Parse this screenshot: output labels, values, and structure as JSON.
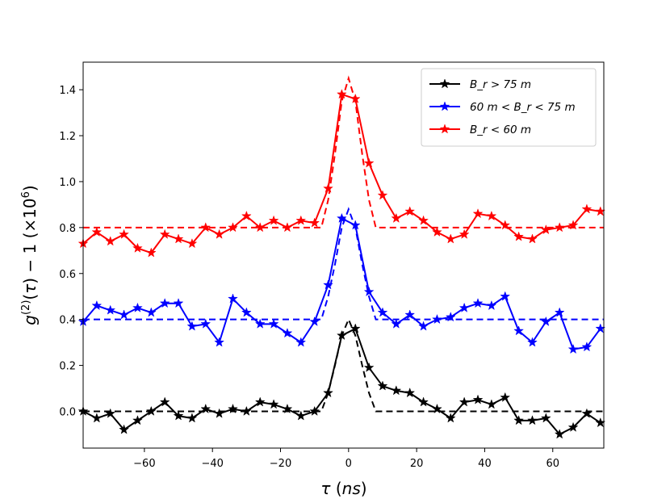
{
  "chart_data": {
    "type": "line",
    "xlabel": "τ (ns)",
    "ylabel": "g(2)(τ) − 1 (×106)",
    "xlim": [
      -78,
      75
    ],
    "ylim": [
      -0.16,
      1.52
    ],
    "xticks": [
      -60,
      -40,
      -20,
      0,
      20,
      40,
      60
    ],
    "yticks": [
      0.0,
      0.2,
      0.4,
      0.6,
      0.8,
      1.0,
      1.2,
      1.4
    ],
    "xtick_labels": [
      "−60",
      "−40",
      "−20",
      "0",
      "20",
      "40",
      "60"
    ],
    "ytick_labels": [
      "0.0",
      "0.2",
      "0.4",
      "0.6",
      "0.8",
      "1.0",
      "1.2",
      "1.4"
    ],
    "legend_position": "top-right",
    "grid": false,
    "x": [
      -78,
      -74,
      -70,
      -66,
      -62,
      -58,
      -54,
      -50,
      -46,
      -42,
      -38,
      -34,
      -30,
      -26,
      -22,
      -18,
      -14,
      -10,
      -6,
      -2,
      2,
      6,
      10,
      14,
      18,
      22,
      26,
      30,
      34,
      38,
      42,
      46,
      50,
      54,
      58,
      62,
      66,
      70,
      74
    ],
    "series": [
      {
        "name": "Br > 75 m",
        "legend_label": "B_r > 75 m",
        "color": "#000000",
        "marker": "star",
        "values": [
          0.0,
          -0.03,
          -0.01,
          -0.08,
          -0.04,
          0.0,
          0.04,
          -0.02,
          -0.03,
          0.01,
          -0.01,
          0.01,
          0.0,
          0.04,
          0.03,
          0.01,
          -0.02,
          0.0,
          0.08,
          0.33,
          0.36,
          0.19,
          0.11,
          0.09,
          0.08,
          0.04,
          0.01,
          -0.03,
          0.04,
          0.05,
          0.03,
          0.06,
          -0.04,
          -0.04,
          -0.03,
          -0.1,
          -0.07,
          -0.01,
          -0.05
        ],
        "fit": {
          "baseline": 0.0,
          "peak": 0.4,
          "x": [
            -78,
            -8,
            -6,
            -4,
            -2,
            0,
            2,
            4,
            6,
            8,
            75
          ],
          "y": [
            0.0,
            0.0,
            0.08,
            0.2,
            0.33,
            0.4,
            0.33,
            0.2,
            0.08,
            0.0,
            0.0
          ]
        }
      },
      {
        "name": "60 m < Br < 75 m",
        "legend_label": "60 m < B_r < 75 m",
        "color": "#0000ff",
        "marker": "star",
        "values": [
          0.39,
          0.46,
          0.44,
          0.42,
          0.45,
          0.43,
          0.47,
          0.47,
          0.37,
          0.38,
          0.3,
          0.49,
          0.43,
          0.38,
          0.38,
          0.34,
          0.3,
          0.39,
          0.55,
          0.84,
          0.81,
          0.52,
          0.43,
          0.38,
          0.42,
          0.37,
          0.4,
          0.41,
          0.45,
          0.47,
          0.46,
          0.5,
          0.35,
          0.3,
          0.39,
          0.43,
          0.27,
          0.28,
          0.36
        ],
        "fit": {
          "baseline": 0.4,
          "peak": 0.88,
          "x": [
            -78,
            -8,
            -6,
            -4,
            -2,
            0,
            2,
            4,
            6,
            8,
            75
          ],
          "y": [
            0.4,
            0.4,
            0.5,
            0.64,
            0.8,
            0.88,
            0.8,
            0.64,
            0.5,
            0.4,
            0.4
          ]
        }
      },
      {
        "name": "Br < 60 m",
        "legend_label": "B_r < 60 m",
        "color": "#ff0000",
        "marker": "star",
        "values": [
          0.73,
          0.78,
          0.74,
          0.77,
          0.71,
          0.69,
          0.77,
          0.75,
          0.73,
          0.8,
          0.77,
          0.8,
          0.85,
          0.8,
          0.83,
          0.8,
          0.83,
          0.82,
          0.97,
          1.38,
          1.36,
          1.08,
          0.94,
          0.84,
          0.87,
          0.83,
          0.78,
          0.75,
          0.77,
          0.86,
          0.85,
          0.81,
          0.76,
          0.75,
          0.79,
          0.8,
          0.81,
          0.88,
          0.87
        ],
        "fit": {
          "baseline": 0.8,
          "peak": 1.45,
          "x": [
            -78,
            -8,
            -6,
            -4,
            -2,
            0,
            2,
            4,
            6,
            8,
            75
          ],
          "y": [
            0.8,
            0.8,
            0.92,
            1.12,
            1.35,
            1.45,
            1.35,
            1.12,
            0.92,
            0.8,
            0.8
          ]
        }
      }
    ]
  }
}
